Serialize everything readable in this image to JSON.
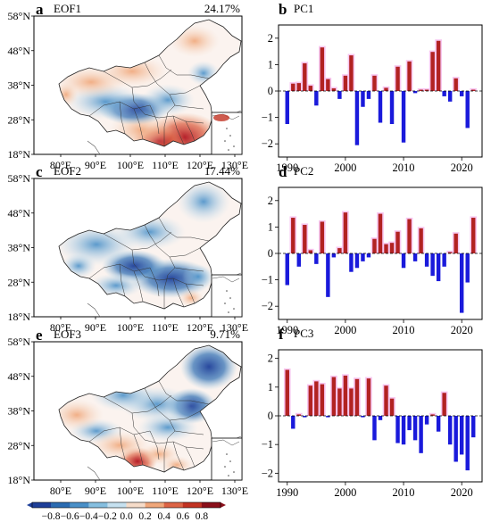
{
  "map_panels": [
    {
      "letter": "a",
      "title": "EOF1",
      "variance": "24.17%",
      "pattern": "eof1"
    },
    {
      "letter": "c",
      "title": "EOF2",
      "variance": "17.44%",
      "pattern": "eof2"
    },
    {
      "letter": "e",
      "title": "EOF3",
      "variance": "9.71%",
      "pattern": "eof3"
    }
  ],
  "lat_labels": [
    "58°N",
    "48°N",
    "38°N",
    "28°N",
    "18°N"
  ],
  "lon_labels": [
    "80°E",
    "90°E",
    "100°E",
    "110°E",
    "120°E",
    "130°E"
  ],
  "colorbar": {
    "ticks": [
      "−0.8",
      "−0.6",
      "−0.4",
      "−0.2",
      "0.0",
      "0.2",
      "0.4",
      "0.6",
      "0.8"
    ],
    "colors": [
      "#1e3f99",
      "#2b6cb2",
      "#4a90c8",
      "#86bfe0",
      "#c6e1f0",
      "#f6dcc9",
      "#f0a77a",
      "#dd6446",
      "#c23323",
      "#8a0f1a"
    ]
  },
  "colors": {
    "positive_bar": "#b22222",
    "negative_bar": "#1a1adb",
    "bar_glow": "#f7c6f0"
  },
  "chart_data": [
    {
      "type": "bar",
      "letter": "b",
      "title": "PC1",
      "x": [
        1990,
        1991,
        1992,
        1993,
        1994,
        1995,
        1996,
        1997,
        1998,
        1999,
        2000,
        2001,
        2002,
        2003,
        2004,
        2005,
        2006,
        2007,
        2008,
        2009,
        2010,
        2011,
        2012,
        2013,
        2014,
        2015,
        2016,
        2017,
        2018,
        2019,
        2020,
        2021,
        2022
      ],
      "values": [
        -1.25,
        0.28,
        0.3,
        1.05,
        0.2,
        -0.55,
        1.65,
        0.45,
        0.1,
        -0.3,
        0.58,
        1.35,
        -2.05,
        -0.6,
        -0.3,
        0.58,
        -1.2,
        0.12,
        -1.25,
        0.92,
        -1.95,
        1.12,
        -0.08,
        0.05,
        0.05,
        1.48,
        1.9,
        -0.2,
        -0.4,
        0.48,
        -0.2,
        -1.4,
        0.05
      ],
      "ylim": [
        -2.5,
        2.5
      ],
      "yticks": [
        -2,
        -1,
        0,
        1,
        2
      ],
      "xticks": [
        1990,
        2000,
        2010,
        2020
      ],
      "xlim": [
        1988.5,
        2023.5
      ]
    },
    {
      "type": "bar",
      "letter": "d",
      "title": "PC2",
      "x": [
        1990,
        1991,
        1992,
        1993,
        1994,
        1995,
        1996,
        1997,
        1998,
        1999,
        2000,
        2001,
        2002,
        2003,
        2004,
        2005,
        2006,
        2007,
        2008,
        2009,
        2010,
        2011,
        2012,
        2013,
        2014,
        2015,
        2016,
        2017,
        2018,
        2019,
        2020,
        2021,
        2022
      ],
      "values": [
        -1.2,
        1.35,
        -0.5,
        1.08,
        0.12,
        -0.4,
        1.2,
        -1.65,
        -0.15,
        0.2,
        1.55,
        -0.7,
        -0.55,
        -0.3,
        -0.15,
        0.55,
        1.5,
        0.35,
        0.4,
        0.82,
        -0.55,
        1.3,
        -0.3,
        0.95,
        -0.5,
        -0.85,
        -1.05,
        -0.5,
        0.05,
        0.75,
        -2.25,
        -1.1,
        1.35
      ],
      "ylim": [
        -2.5,
        2.5
      ],
      "yticks": [
        -2,
        -1,
        0,
        1,
        2
      ],
      "xticks": [
        1990,
        2000,
        2010,
        2020
      ],
      "xlim": [
        1988.5,
        2023.5
      ]
    },
    {
      "type": "bar",
      "letter": "f",
      "title": "PC3",
      "x": [
        1990,
        1991,
        1992,
        1993,
        1994,
        1995,
        1996,
        1997,
        1998,
        1999,
        2000,
        2001,
        2002,
        2003,
        2004,
        2005,
        2006,
        2007,
        2008,
        2009,
        2010,
        2011,
        2012,
        2013,
        2014,
        2015,
        2016,
        2017,
        2018,
        2019,
        2020,
        2021,
        2022
      ],
      "values": [
        1.6,
        -0.45,
        0.05,
        -0.05,
        1.05,
        1.2,
        1.1,
        -0.05,
        1.35,
        0.95,
        1.4,
        0.95,
        1.28,
        -0.05,
        1.3,
        -0.85,
        -0.15,
        1.05,
        0.6,
        -0.95,
        -1.0,
        -0.5,
        -0.85,
        -1.3,
        -0.3,
        0.05,
        -0.55,
        0.8,
        -1.0,
        -1.6,
        -1.35,
        -1.9,
        -0.75
      ],
      "ylim": [
        -2.3,
        2.3
      ],
      "yticks": [
        -2,
        -1,
        0,
        1,
        2
      ],
      "xticks": [
        1990,
        2000,
        2010,
        2020
      ],
      "xlim": [
        1988.5,
        2023.5
      ]
    }
  ]
}
